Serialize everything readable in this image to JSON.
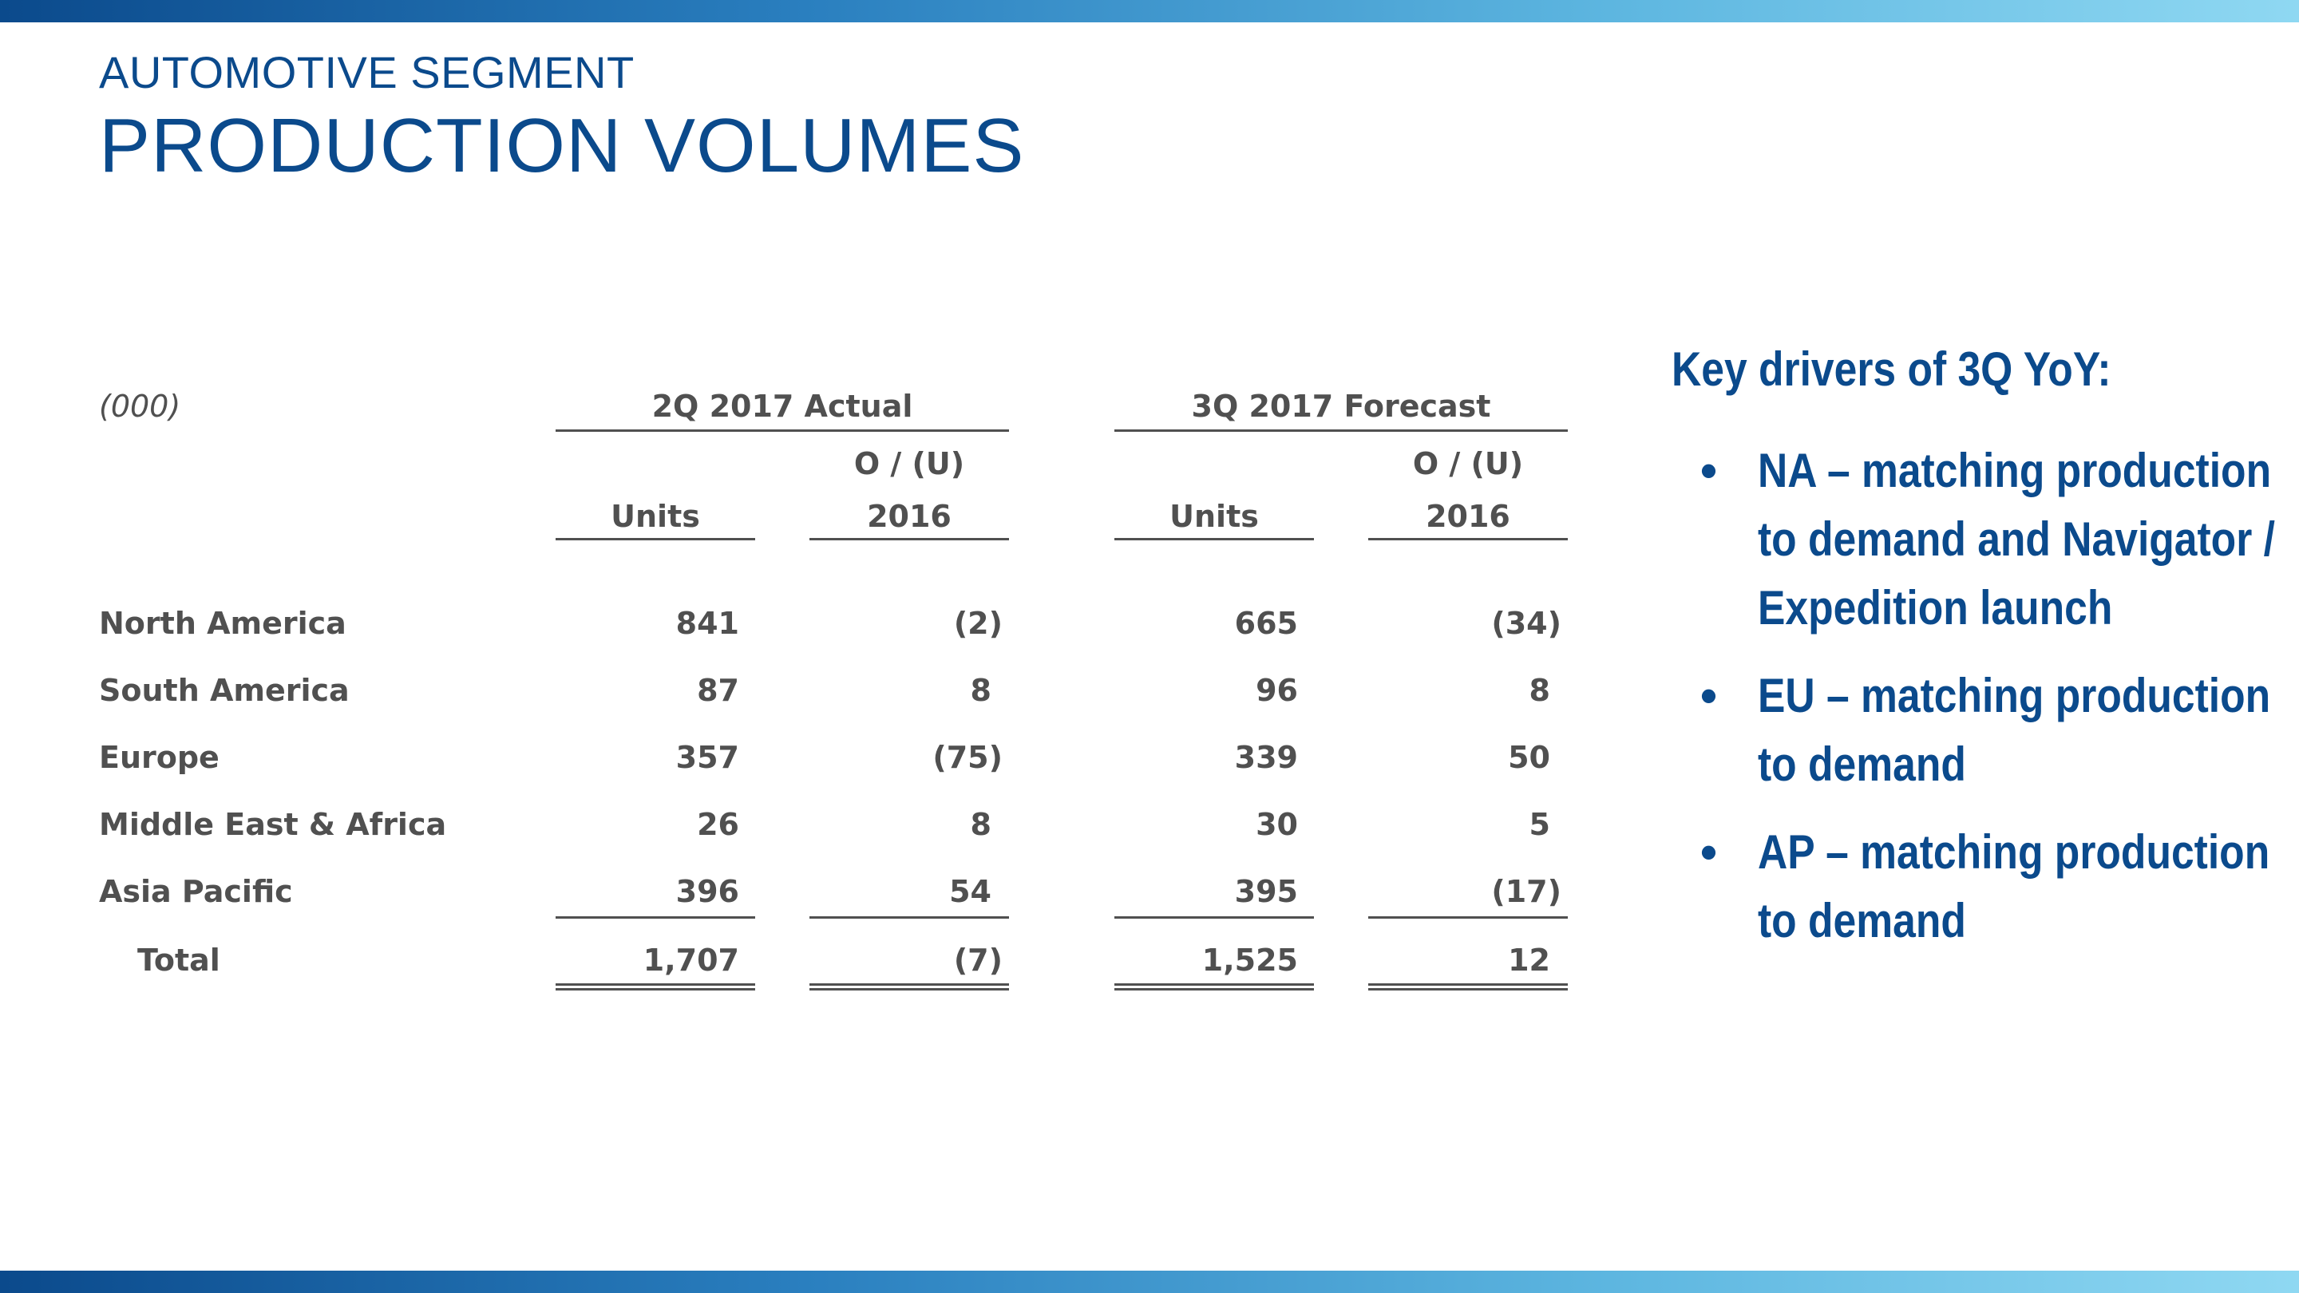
{
  "header": {
    "subtitle": "AUTOMOTIVE SEGMENT",
    "title": "PRODUCTION VOLUMES"
  },
  "table": {
    "unit_note": "(000)",
    "groups": [
      "2Q 2017 Actual",
      "3Q 2017 Forecast"
    ],
    "column_headers": {
      "units": "Units",
      "variance_line1": "O / (U)",
      "variance_line2": "2016"
    },
    "rows": [
      {
        "region": "North America",
        "q2_units": "841",
        "q2_var": "(2)",
        "q3_units": "665",
        "q3_var": "(34)"
      },
      {
        "region": "South America",
        "q2_units": "87",
        "q2_var": "8",
        "q3_units": "96",
        "q3_var": "8"
      },
      {
        "region": "Europe",
        "q2_units": "357",
        "q2_var": "(75)",
        "q3_units": "339",
        "q3_var": "50"
      },
      {
        "region": "Middle East & Africa",
        "q2_units": "26",
        "q2_var": "8",
        "q3_units": "30",
        "q3_var": "5"
      },
      {
        "region": "Asia Pacific",
        "q2_units": "396",
        "q2_var": "54",
        "q3_units": "395",
        "q3_var": "(17)"
      }
    ],
    "total": {
      "label": "Total",
      "q2_units": "1,707",
      "q2_var": "(7)",
      "q3_units": "1,525",
      "q3_var": "12"
    }
  },
  "drivers": {
    "heading": "Key drivers of 3Q YoY:",
    "items": [
      "NA – matching production to demand and Navigator / Expedition launch",
      "EU – matching production to demand",
      "AP – matching production to demand"
    ]
  },
  "colors": {
    "brand_blue": "#0b4a8c",
    "table_text": "#505050"
  }
}
